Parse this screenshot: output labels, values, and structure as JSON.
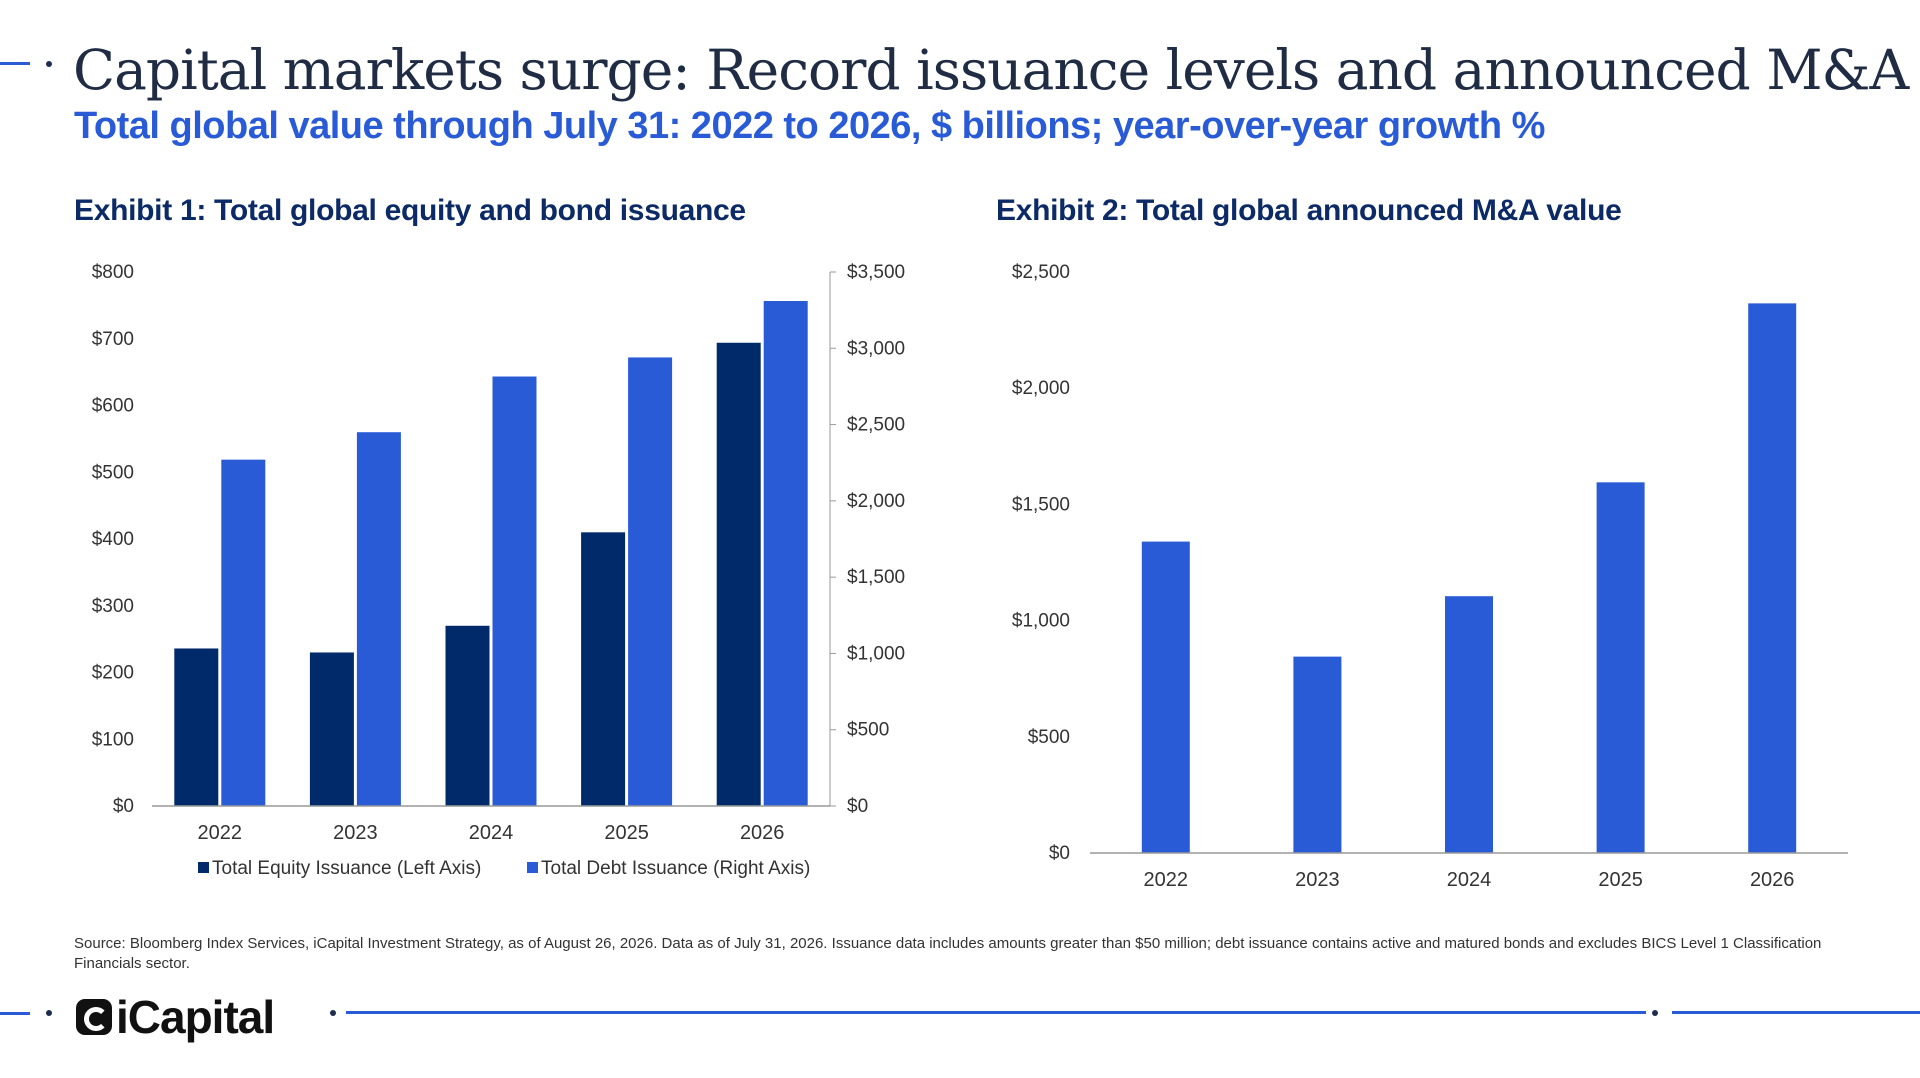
{
  "header": {
    "title": "Capital markets surge: Record issuance levels and announced M&A",
    "subtitle": "Total global value through July 31: 2022 to 2026, $ billions; year-over-year growth %"
  },
  "exhibit1": {
    "title": "Exhibit 1: Total global equity and bond issuance"
  },
  "exhibit2": {
    "title": "Exhibit 2: Total global announced M&A value"
  },
  "colors": {
    "equity": "#002a6a",
    "debt": "#2a5bd7",
    "accent": "#2a5bd7",
    "title": "#0b2a66"
  },
  "chart_data": [
    {
      "type": "bar",
      "categories": [
        "2022",
        "2023",
        "2024",
        "2025",
        "2026"
      ],
      "series": [
        {
          "name": "Total Equity Issuance (Left Axis)",
          "axis": "left",
          "values": [
            236,
            230,
            270,
            410,
            694
          ]
        },
        {
          "name": "Total Debt Issuance (Right Axis)",
          "axis": "right",
          "values": [
            2270,
            2450,
            2815,
            2940,
            3310
          ]
        }
      ],
      "y_left": {
        "lim": [
          0,
          800
        ],
        "ticks": [
          "$0",
          "$100",
          "$200",
          "$300",
          "$400",
          "$500",
          "$600",
          "$700",
          "$800"
        ]
      },
      "y_right": {
        "lim": [
          0,
          3500
        ],
        "ticks": [
          "$0",
          "$500",
          "$1,000",
          "$1,500",
          "$2,000",
          "$2,500",
          "$3,000",
          "$3,500"
        ]
      },
      "legend": "bottom",
      "grid": false
    },
    {
      "type": "bar",
      "categories": [
        "2022",
        "2023",
        "2024",
        "2025",
        "2026"
      ],
      "values": [
        1340,
        845,
        1105,
        1595,
        2365
      ],
      "ylim": [
        0,
        2500
      ],
      "yticks": [
        "$0",
        "$500",
        "$1,000",
        "$1,500",
        "$2,000",
        "$2,500"
      ],
      "grid": false
    }
  ],
  "footer": {
    "source": "Source: Bloomberg Index Services, iCapital Investment Strategy, as of August 26, 2026. Data as of July 31, 2026. Issuance data includes amounts greater than $50 million; debt issuance contains active and matured bonds and excludes BICS Level 1 Classification Financials sector.",
    "logo": "iCapital"
  }
}
